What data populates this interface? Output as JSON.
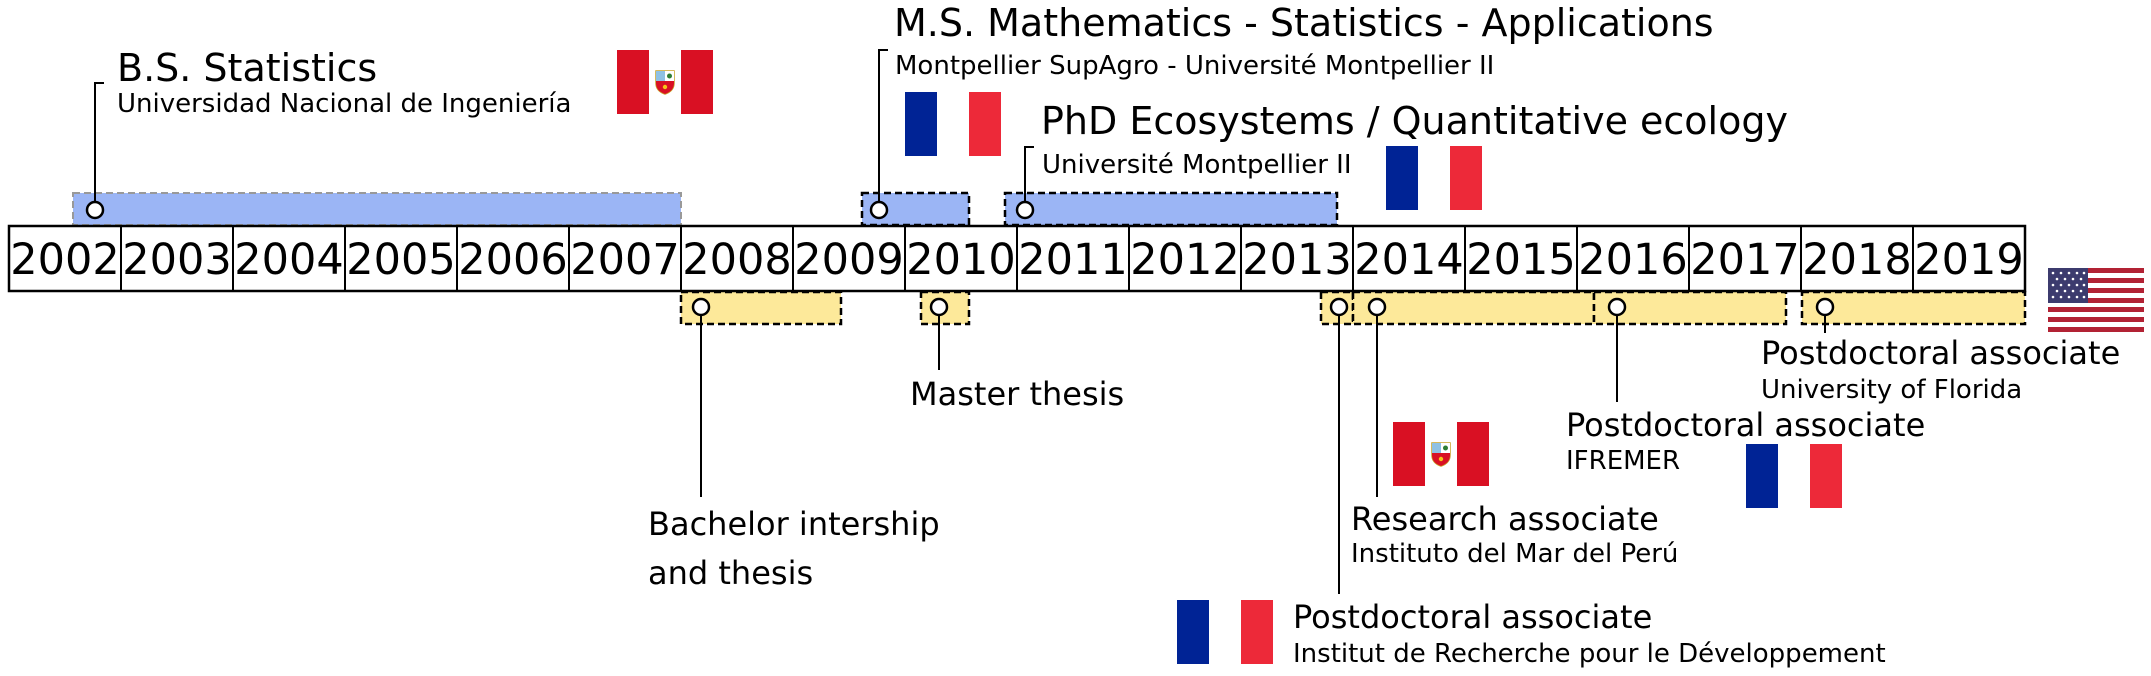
{
  "timeline": {
    "years": [
      "2002",
      "2003",
      "2004",
      "2005",
      "2006",
      "2007",
      "2008",
      "2009",
      "2010",
      "2011",
      "2012",
      "2013",
      "2014",
      "2015",
      "2016",
      "2017",
      "2018",
      "2019"
    ]
  },
  "colors": {
    "education": "#9bb5f5",
    "work": "#fde99a",
    "france_blue": "#002395",
    "france_red": "#ed2939",
    "peru_red": "#d91023",
    "us_red": "#b22234",
    "us_blue": "#3c3b6e"
  },
  "education": [
    {
      "title": "B.S. Statistics",
      "subtitle": "Universidad Nacional de Ingeniería",
      "flag": "peru-flag"
    },
    {
      "title": "M.S. Mathematics - Statistics - Applications",
      "subtitle": "Montpellier SupAgro - Université Montpellier II",
      "flag": "france-flag"
    },
    {
      "title": "PhD Ecosystems / Quantitative ecology",
      "subtitle": "Université Montpellier II",
      "flag": "france-flag"
    }
  ],
  "work": [
    {
      "title_line1": "Bachelor intership",
      "title_line2": "and thesis"
    },
    {
      "title": "Master thesis"
    },
    {
      "title": "Postdoctoral associate",
      "subtitle": "Institut de Recherche pour le Développement",
      "flag": "france-flag"
    },
    {
      "title": "Research associate",
      "subtitle": "Instituto del Mar del Perú",
      "flag": "peru-flag"
    },
    {
      "title": "Postdoctoral associate",
      "subtitle": "IFREMER",
      "flag": "france-flag"
    },
    {
      "title": "Postdoctoral associate",
      "subtitle": "University of Florida",
      "flag": "usa-flag"
    }
  ]
}
